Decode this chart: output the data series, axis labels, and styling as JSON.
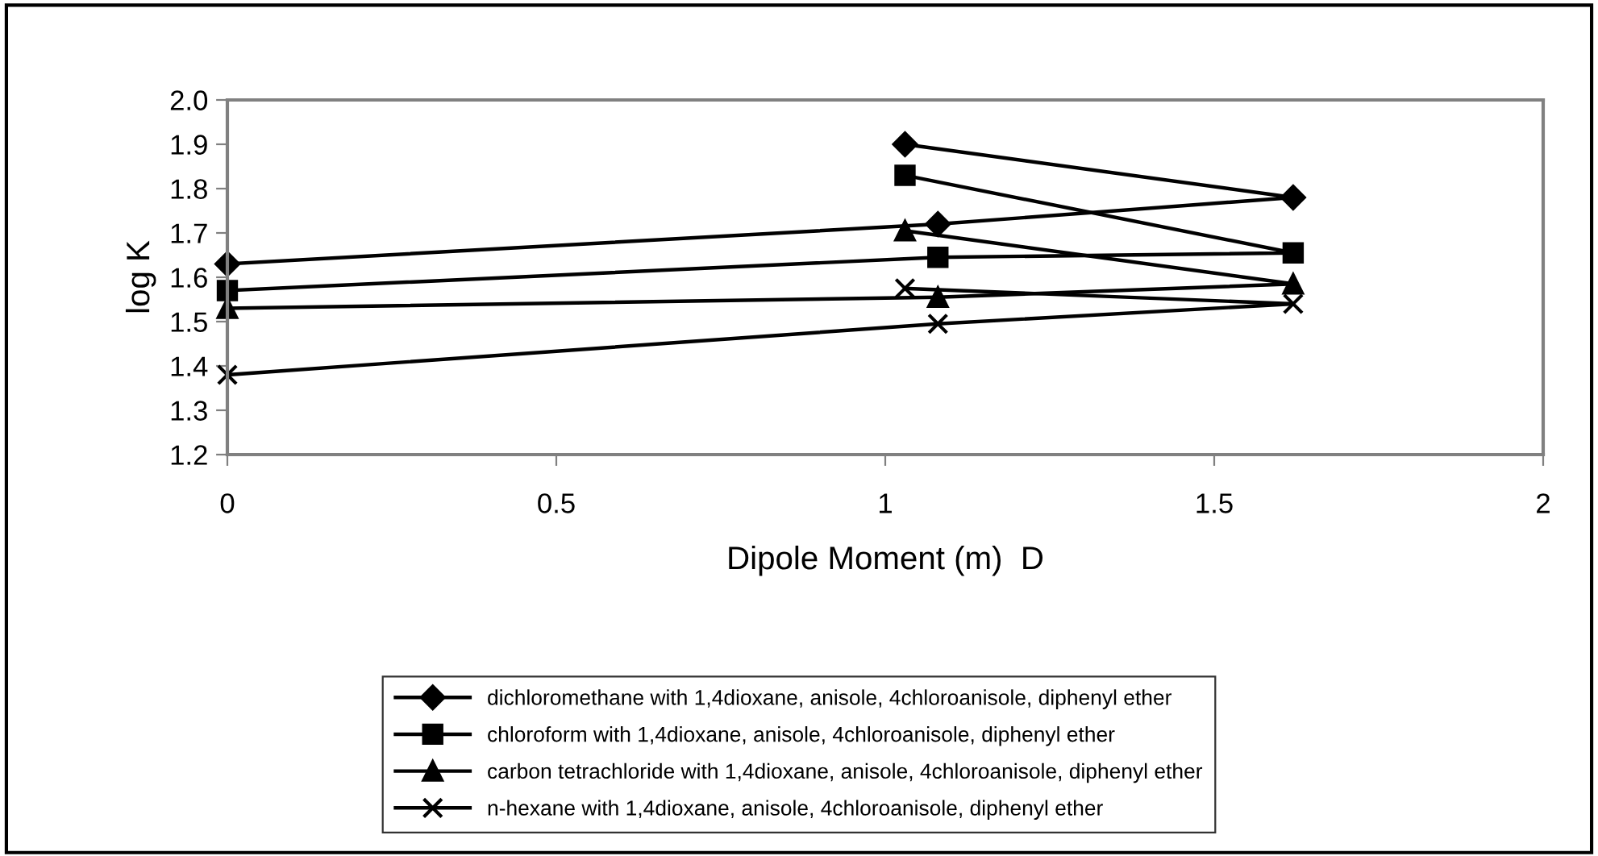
{
  "chart_data": {
    "type": "line",
    "xlabel": "Dipole Moment (m)  D",
    "ylabel": "log K",
    "xlim": [
      0,
      2
    ],
    "xticks": [
      0,
      0.5,
      1,
      1.5,
      2
    ],
    "ylim": [
      1.2,
      2.0
    ],
    "yticks": [
      {
        "value": 1.2,
        "label": "1.2"
      },
      {
        "value": 1.3,
        "label": "1.3"
      },
      {
        "value": 1.4,
        "label": "1.4"
      },
      {
        "value": 1.5,
        "label": "1.5"
      },
      {
        "value": 1.6,
        "label": "1.6"
      },
      {
        "value": 1.7,
        "label": "1.7"
      },
      {
        "value": 1.8,
        "label": "1.8"
      },
      {
        "value": 1.9,
        "label": "1.9"
      },
      {
        "value": 2.0,
        "label": "2.0"
      }
    ],
    "grid": false,
    "legend": "bottom",
    "line_style": "solid",
    "series": [
      {
        "name": "dichloromethane with 1,4dioxane, anisole, 4chloroanisole, diphenyl ether",
        "color": "#000000",
        "marker": "diamond",
        "x": [
          0,
          1.08,
          1.62,
          1.03
        ],
        "values": [
          1.63,
          1.72,
          1.78,
          1.9
        ]
      },
      {
        "name": "chloroform with 1,4dioxane, anisole, 4chloroanisole, diphenyl ether",
        "color": "#000000",
        "marker": "square",
        "x": [
          0,
          1.08,
          1.62,
          1.03
        ],
        "values": [
          1.57,
          1.645,
          1.655,
          1.83
        ]
      },
      {
        "name": "carbon tetrachloride with 1,4dioxane, anisole, 4chloroanisole, diphenyl ether",
        "color": "#000000",
        "marker": "triangle",
        "x": [
          0,
          1.08,
          1.62,
          1.03
        ],
        "values": [
          1.53,
          1.555,
          1.585,
          1.705
        ]
      },
      {
        "name": "n-hexane with 1,4dioxane, anisole, 4chloroanisole, diphenyl ether",
        "color": "#000000",
        "marker": "cross",
        "x": [
          0,
          1.08,
          1.62,
          1.03
        ],
        "values": [
          1.38,
          1.495,
          1.54,
          1.575
        ]
      }
    ]
  }
}
